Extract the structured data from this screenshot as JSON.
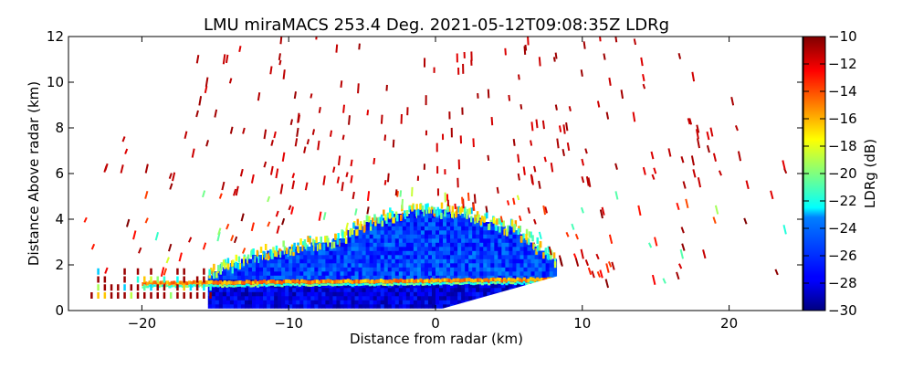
{
  "chart_data": {
    "type": "heatmap",
    "title": "LMU miraMACS 253.4 Deg. 2021-05-12T09:08:35Z  LDRg",
    "xlabel": "Distance from radar (km)",
    "ylabel": "Distance Above radar  (km)",
    "xlim": [
      -25,
      25
    ],
    "ylim": [
      0,
      12
    ],
    "xticks": [
      "−20",
      "−10",
      "0",
      "10",
      "20"
    ],
    "xtick_values": [
      -20,
      -10,
      0,
      10,
      20
    ],
    "yticks": [
      "0",
      "2",
      "4",
      "6",
      "8",
      "10",
      "12"
    ],
    "ytick_values": [
      0,
      2,
      4,
      6,
      8,
      10,
      12
    ],
    "colorbar": {
      "label": "LDRg (dB)",
      "range": [
        -30,
        -10
      ],
      "ticks": [
        "−30",
        "−28",
        "−26",
        "−24",
        "−22",
        "−20",
        "−18",
        "−16",
        "−14",
        "−12",
        "−10"
      ],
      "tick_values": [
        -30,
        -28,
        -26,
        -24,
        -22,
        -20,
        -18,
        -16,
        -14,
        -12,
        -10
      ],
      "colormap": "jet"
    },
    "features": [
      {
        "name": "low cloud layer",
        "x_range": [
          -16,
          8
        ],
        "height_top_km": 4.3,
        "ldr_db": -28
      },
      {
        "name": "melting layer",
        "x_range": [
          -20,
          8
        ],
        "height_km": 1.3,
        "ldr_db": -16
      },
      {
        "name": "scattered noise",
        "x_range": [
          -23,
          23
        ],
        "height_range_km": [
          0.5,
          12
        ],
        "ldr_db": -11
      }
    ],
    "grid": false
  }
}
